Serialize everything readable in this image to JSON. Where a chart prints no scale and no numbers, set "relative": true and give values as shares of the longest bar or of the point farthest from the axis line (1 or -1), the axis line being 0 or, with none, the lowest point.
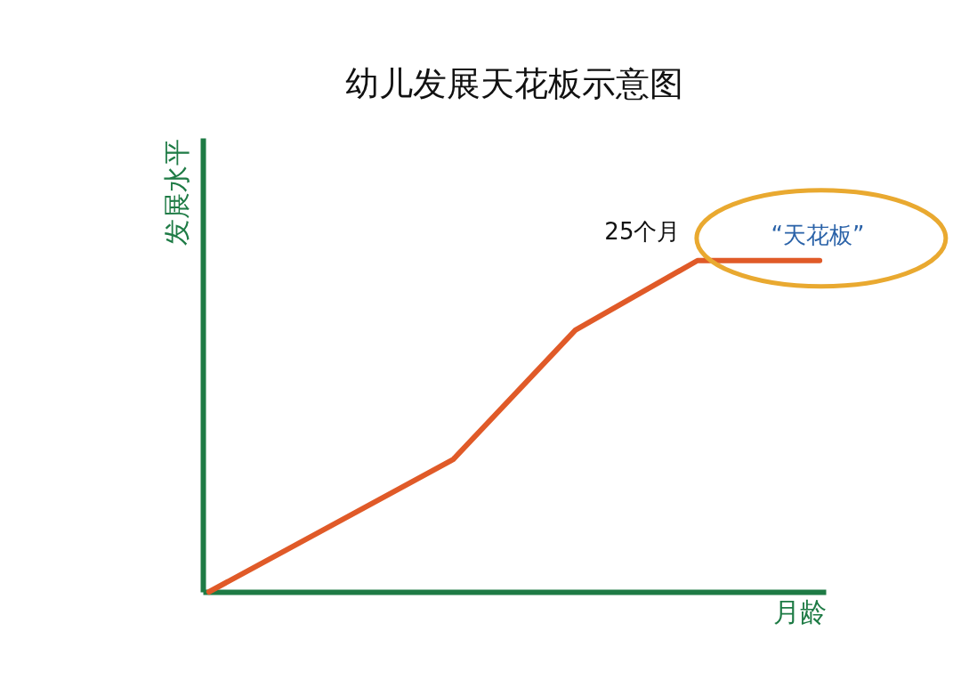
{
  "chart_data": {
    "type": "line",
    "title": "幼儿发展天花板示意图",
    "xlabel": "月龄",
    "ylabel": "发展水平",
    "relative": true,
    "marker": "none",
    "categories": [
      null,
      null,
      null,
      null,
      null,
      null
    ],
    "series": [
      {
        "color": "#e05a28",
        "values": [
          0,
          0.2,
          0.4,
          0.79,
          1,
          1
        ]
      }
    ],
    "annotations": [
      "25个月",
      "“天花板”"
    ]
  }
}
